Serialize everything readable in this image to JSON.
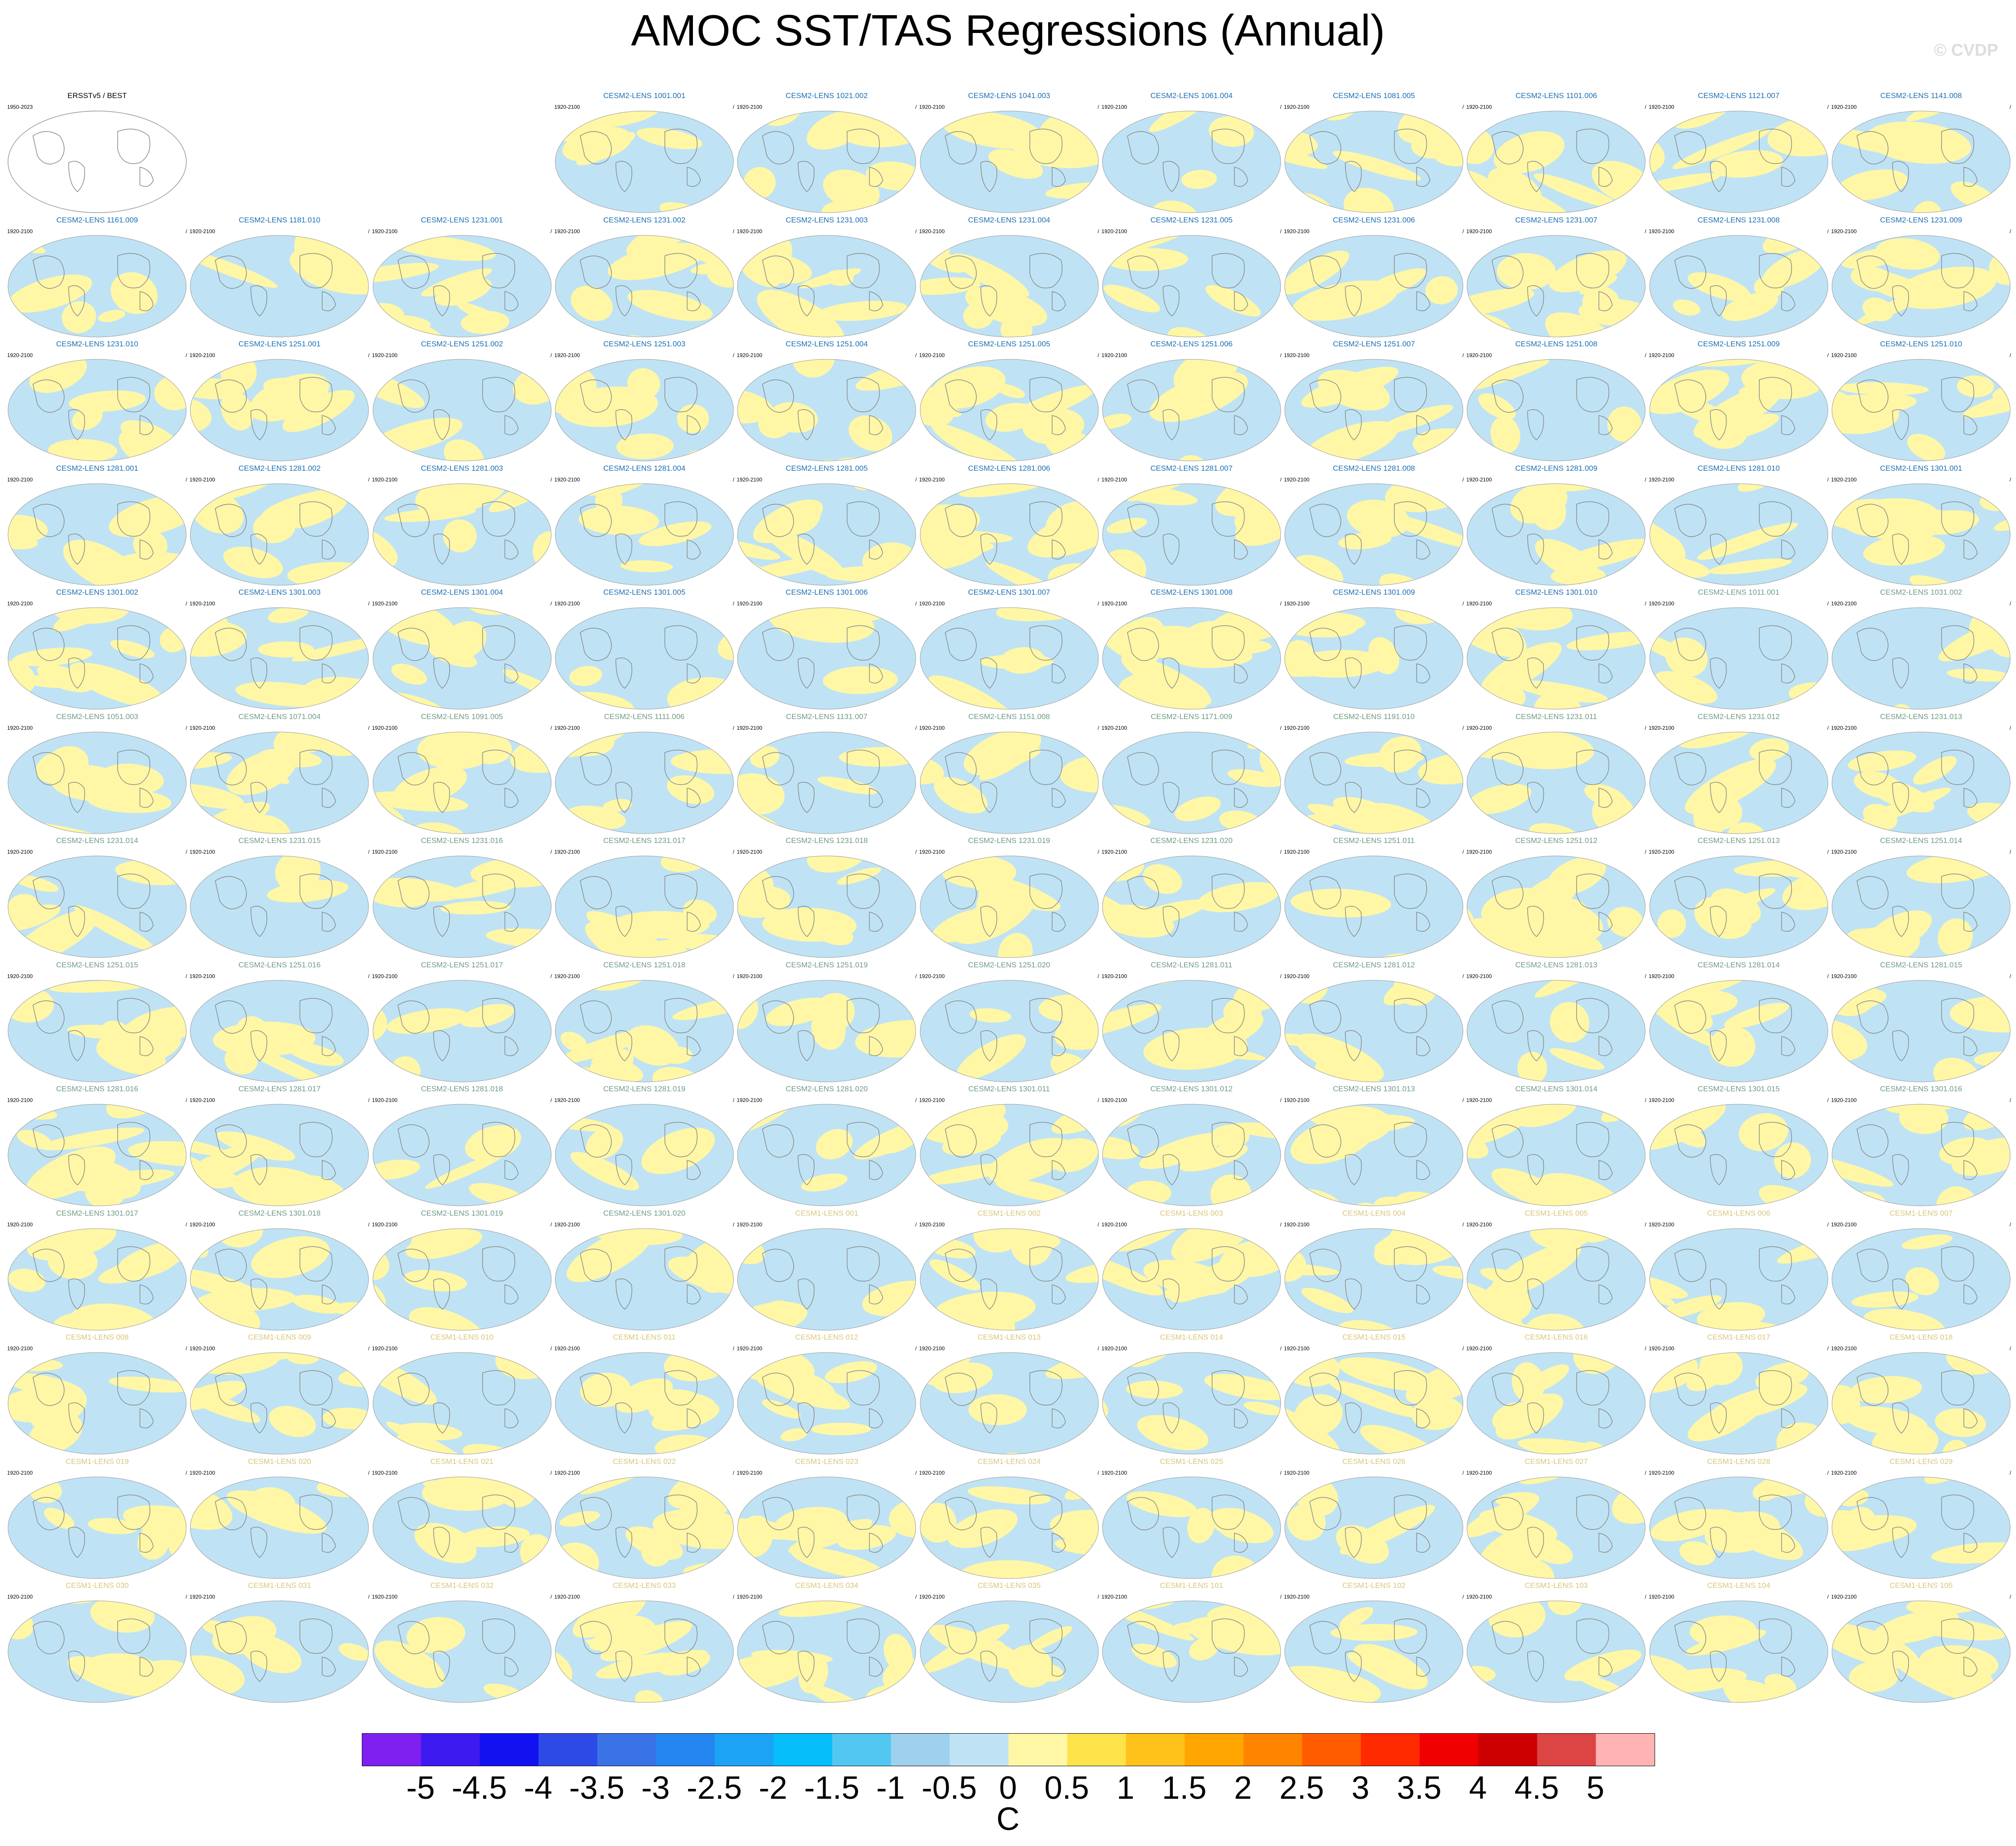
{
  "title": "AMOC SST/TAS Regressions (Annual)",
  "copyright": "© CVDP",
  "chart_data": {
    "type": "heatmap",
    "title": "AMOC SST/TAS Regressions (Annual)",
    "projection": "global map panels",
    "colorbar": {
      "label": "C",
      "levels": [
        "-5",
        "-4.5",
        "-4",
        "-3.5",
        "-3",
        "-2.5",
        "-2",
        "-1.5",
        "-1",
        "-0.5",
        "0",
        "0.5",
        "1",
        "1.5",
        "2",
        "2.5",
        "3",
        "3.5",
        "4",
        "4.5",
        "5"
      ],
      "colors": [
        "#7f1ff0",
        "#3d1af0",
        "#1212f0",
        "#2e4ae6",
        "#3a73e6",
        "#2486f0",
        "#1ca3f5",
        "#05befa",
        "#52c7f2",
        "#9ed1ee",
        "#bfe3f5",
        "#fff7a6",
        "#ffe34a",
        "#ffc21a",
        "#ffa600",
        "#ff8500",
        "#ff5c00",
        "#ff2a00",
        "#f00000",
        "#cc0000",
        "#dd4444",
        "#ffb3b3"
      ]
    },
    "observation_panel": {
      "title": "ERSSTv5 / BEST",
      "years": "1950-2023"
    },
    "panel_years": "1920-2100",
    "panels": [
      {
        "title": "CESM2-LENS 1001.001",
        "group": "cesm2a"
      },
      {
        "title": "CESM2-LENS 1021.002",
        "group": "cesm2a"
      },
      {
        "title": "CESM2-LENS 1041.003",
        "group": "cesm2a"
      },
      {
        "title": "CESM2-LENS 1061.004",
        "group": "cesm2a"
      },
      {
        "title": "CESM2-LENS 1081.005",
        "group": "cesm2a"
      },
      {
        "title": "CESM2-LENS 1101.006",
        "group": "cesm2a"
      },
      {
        "title": "CESM2-LENS 1121.007",
        "group": "cesm2a"
      },
      {
        "title": "CESM2-LENS 1141.008",
        "group": "cesm2a"
      },
      {
        "title": "CESM2-LENS 1161.009",
        "group": "cesm2a"
      },
      {
        "title": "CESM2-LENS 1181.010",
        "group": "cesm2a"
      },
      {
        "title": "CESM2-LENS 1231.001",
        "group": "cesm2a"
      },
      {
        "title": "CESM2-LENS 1231.002",
        "group": "cesm2a"
      },
      {
        "title": "CESM2-LENS 1231.003",
        "group": "cesm2a"
      },
      {
        "title": "CESM2-LENS 1231.004",
        "group": "cesm2a"
      },
      {
        "title": "CESM2-LENS 1231.005",
        "group": "cesm2a"
      },
      {
        "title": "CESM2-LENS 1231.006",
        "group": "cesm2a"
      },
      {
        "title": "CESM2-LENS 1231.007",
        "group": "cesm2a"
      },
      {
        "title": "CESM2-LENS 1231.008",
        "group": "cesm2a"
      },
      {
        "title": "CESM2-LENS 1231.009",
        "group": "cesm2a"
      },
      {
        "title": "CESM2-LENS 1231.010",
        "group": "cesm2a"
      },
      {
        "title": "CESM2-LENS 1251.001",
        "group": "cesm2a"
      },
      {
        "title": "CESM2-LENS 1251.002",
        "group": "cesm2a"
      },
      {
        "title": "CESM2-LENS 1251.003",
        "group": "cesm2a"
      },
      {
        "title": "CESM2-LENS 1251.004",
        "group": "cesm2a"
      },
      {
        "title": "CESM2-LENS 1251.005",
        "group": "cesm2a"
      },
      {
        "title": "CESM2-LENS 1251.006",
        "group": "cesm2a"
      },
      {
        "title": "CESM2-LENS 1251.007",
        "group": "cesm2a"
      },
      {
        "title": "CESM2-LENS 1251.008",
        "group": "cesm2a"
      },
      {
        "title": "CESM2-LENS 1251.009",
        "group": "cesm2a"
      },
      {
        "title": "CESM2-LENS 1251.010",
        "group": "cesm2a"
      },
      {
        "title": "CESM2-LENS 1281.001",
        "group": "cesm2a"
      },
      {
        "title": "CESM2-LENS 1281.002",
        "group": "cesm2a"
      },
      {
        "title": "CESM2-LENS 1281.003",
        "group": "cesm2a"
      },
      {
        "title": "CESM2-LENS 1281.004",
        "group": "cesm2a"
      },
      {
        "title": "CESM2-LENS 1281.005",
        "group": "cesm2a"
      },
      {
        "title": "CESM2-LENS 1281.006",
        "group": "cesm2a"
      },
      {
        "title": "CESM2-LENS 1281.007",
        "group": "cesm2a"
      },
      {
        "title": "CESM2-LENS 1281.008",
        "group": "cesm2a"
      },
      {
        "title": "CESM2-LENS 1281.009",
        "group": "cesm2a"
      },
      {
        "title": "CESM2-LENS 1281.010",
        "group": "cesm2a"
      },
      {
        "title": "CESM2-LENS 1301.001",
        "group": "cesm2a"
      },
      {
        "title": "CESM2-LENS 1301.002",
        "group": "cesm2a"
      },
      {
        "title": "CESM2-LENS 1301.003",
        "group": "cesm2a"
      },
      {
        "title": "CESM2-LENS 1301.004",
        "group": "cesm2a"
      },
      {
        "title": "CESM2-LENS 1301.005",
        "group": "cesm2a"
      },
      {
        "title": "CESM2-LENS 1301.006",
        "group": "cesm2a"
      },
      {
        "title": "CESM2-LENS 1301.007",
        "group": "cesm2a"
      },
      {
        "title": "CESM2-LENS 1301.008",
        "group": "cesm2a"
      },
      {
        "title": "CESM2-LENS 1301.009",
        "group": "cesm2a"
      },
      {
        "title": "CESM2-LENS 1301.010",
        "group": "cesm2a"
      },
      {
        "title": "CESM2-LENS 1011.001",
        "group": "cesm2b"
      },
      {
        "title": "CESM2-LENS 1031.002",
        "group": "cesm2b"
      },
      {
        "title": "CESM2-LENS 1051.003",
        "group": "cesm2b"
      },
      {
        "title": "CESM2-LENS 1071.004",
        "group": "cesm2b"
      },
      {
        "title": "CESM2-LENS 1091.005",
        "group": "cesm2b"
      },
      {
        "title": "CESM2-LENS 1111.006",
        "group": "cesm2b"
      },
      {
        "title": "CESM2-LENS 1131.007",
        "group": "cesm2b"
      },
      {
        "title": "CESM2-LENS 1151.008",
        "group": "cesm2b"
      },
      {
        "title": "CESM2-LENS 1171.009",
        "group": "cesm2b"
      },
      {
        "title": "CESM2-LENS 1191.010",
        "group": "cesm2b"
      },
      {
        "title": "CESM2-LENS 1231.011",
        "group": "cesm2b"
      },
      {
        "title": "CESM2-LENS 1231.012",
        "group": "cesm2b"
      },
      {
        "title": "CESM2-LENS 1231.013",
        "group": "cesm2b"
      },
      {
        "title": "CESM2-LENS 1231.014",
        "group": "cesm2b"
      },
      {
        "title": "CESM2-LENS 1231.015",
        "group": "cesm2b"
      },
      {
        "title": "CESM2-LENS 1231.016",
        "group": "cesm2b"
      },
      {
        "title": "CESM2-LENS 1231.017",
        "group": "cesm2b"
      },
      {
        "title": "CESM2-LENS 1231.018",
        "group": "cesm2b"
      },
      {
        "title": "CESM2-LENS 1231.019",
        "group": "cesm2b"
      },
      {
        "title": "CESM2-LENS 1231.020",
        "group": "cesm2b"
      },
      {
        "title": "CESM2-LENS 1251.011",
        "group": "cesm2b"
      },
      {
        "title": "CESM2-LENS 1251.012",
        "group": "cesm2b"
      },
      {
        "title": "CESM2-LENS 1251.013",
        "group": "cesm2b"
      },
      {
        "title": "CESM2-LENS 1251.014",
        "group": "cesm2b"
      },
      {
        "title": "CESM2-LENS 1251.015",
        "group": "cesm2b"
      },
      {
        "title": "CESM2-LENS 1251.016",
        "group": "cesm2b"
      },
      {
        "title": "CESM2-LENS 1251.017",
        "group": "cesm2b"
      },
      {
        "title": "CESM2-LENS 1251.018",
        "group": "cesm2b"
      },
      {
        "title": "CESM2-LENS 1251.019",
        "group": "cesm2b"
      },
      {
        "title": "CESM2-LENS 1251.020",
        "group": "cesm2b"
      },
      {
        "title": "CESM2-LENS 1281.011",
        "group": "cesm2b"
      },
      {
        "title": "CESM2-LENS 1281.012",
        "group": "cesm2b"
      },
      {
        "title": "CESM2-LENS 1281.013",
        "group": "cesm2b"
      },
      {
        "title": "CESM2-LENS 1281.014",
        "group": "cesm2b"
      },
      {
        "title": "CESM2-LENS 1281.015",
        "group": "cesm2b"
      },
      {
        "title": "CESM2-LENS 1281.016",
        "group": "cesm2b"
      },
      {
        "title": "CESM2-LENS 1281.017",
        "group": "cesm2b"
      },
      {
        "title": "CESM2-LENS 1281.018",
        "group": "cesm2b"
      },
      {
        "title": "CESM2-LENS 1281.019",
        "group": "cesm2b"
      },
      {
        "title": "CESM2-LENS 1281.020",
        "group": "cesm2b"
      },
      {
        "title": "CESM2-LENS 1301.011",
        "group": "cesm2b"
      },
      {
        "title": "CESM2-LENS 1301.012",
        "group": "cesm2b"
      },
      {
        "title": "CESM2-LENS 1301.013",
        "group": "cesm2b"
      },
      {
        "title": "CESM2-LENS 1301.014",
        "group": "cesm2b"
      },
      {
        "title": "CESM2-LENS 1301.015",
        "group": "cesm2b"
      },
      {
        "title": "CESM2-LENS 1301.016",
        "group": "cesm2b"
      },
      {
        "title": "CESM2-LENS 1301.017",
        "group": "cesm2b"
      },
      {
        "title": "CESM2-LENS 1301.018",
        "group": "cesm2b"
      },
      {
        "title": "CESM2-LENS 1301.019",
        "group": "cesm2b"
      },
      {
        "title": "CESM2-LENS 1301.020",
        "group": "cesm2b"
      },
      {
        "title": "CESM1-LENS 001",
        "group": "cesm1"
      },
      {
        "title": "CESM1-LENS 002",
        "group": "cesm1"
      },
      {
        "title": "CESM1-LENS 003",
        "group": "cesm1"
      },
      {
        "title": "CESM1-LENS 004",
        "group": "cesm1"
      },
      {
        "title": "CESM1-LENS 005",
        "group": "cesm1"
      },
      {
        "title": "CESM1-LENS 006",
        "group": "cesm1"
      },
      {
        "title": "CESM1-LENS 007",
        "group": "cesm1"
      },
      {
        "title": "CESM1-LENS 008",
        "group": "cesm1"
      },
      {
        "title": "CESM1-LENS 009",
        "group": "cesm1"
      },
      {
        "title": "CESM1-LENS 010",
        "group": "cesm1"
      },
      {
        "title": "CESM1-LENS 011",
        "group": "cesm1"
      },
      {
        "title": "CESM1-LENS 012",
        "group": "cesm1"
      },
      {
        "title": "CESM1-LENS 013",
        "group": "cesm1"
      },
      {
        "title": "CESM1-LENS 014",
        "group": "cesm1"
      },
      {
        "title": "CESM1-LENS 015",
        "group": "cesm1"
      },
      {
        "title": "CESM1-LENS 016",
        "group": "cesm1"
      },
      {
        "title": "CESM1-LENS 017",
        "group": "cesm1"
      },
      {
        "title": "CESM1-LENS 018",
        "group": "cesm1"
      },
      {
        "title": "CESM1-LENS 019",
        "group": "cesm1"
      },
      {
        "title": "CESM1-LENS 020",
        "group": "cesm1"
      },
      {
        "title": "CESM1-LENS 021",
        "group": "cesm1"
      },
      {
        "title": "CESM1-LENS 022",
        "group": "cesm1"
      },
      {
        "title": "CESM1-LENS 023",
        "group": "cesm1"
      },
      {
        "title": "CESM1-LENS 024",
        "group": "cesm1"
      },
      {
        "title": "CESM1-LENS 025",
        "group": "cesm1"
      },
      {
        "title": "CESM1-LENS 026",
        "group": "cesm1"
      },
      {
        "title": "CESM1-LENS 027",
        "group": "cesm1"
      },
      {
        "title": "CESM1-LENS 028",
        "group": "cesm1"
      },
      {
        "title": "CESM1-LENS 029",
        "group": "cesm1"
      },
      {
        "title": "CESM1-LENS 030",
        "group": "cesm1"
      },
      {
        "title": "CESM1-LENS 031",
        "group": "cesm1"
      },
      {
        "title": "CESM1-LENS 032",
        "group": "cesm1"
      },
      {
        "title": "CESM1-LENS 033",
        "group": "cesm1"
      },
      {
        "title": "CESM1-LENS 034",
        "group": "cesm1"
      },
      {
        "title": "CESM1-LENS 035",
        "group": "cesm1"
      },
      {
        "title": "CESM1-LENS 101",
        "group": "cesm1"
      },
      {
        "title": "CESM1-LENS 102",
        "group": "cesm1"
      },
      {
        "title": "CESM1-LENS 103",
        "group": "cesm1"
      },
      {
        "title": "CESM1-LENS 104",
        "group": "cesm1"
      },
      {
        "title": "CESM1-LENS 105",
        "group": "cesm1"
      }
    ],
    "group_colors": {
      "cesm2a": "#1a6fb3",
      "cesm2b": "#6f9a86",
      "cesm1": "#d9c67a"
    }
  }
}
